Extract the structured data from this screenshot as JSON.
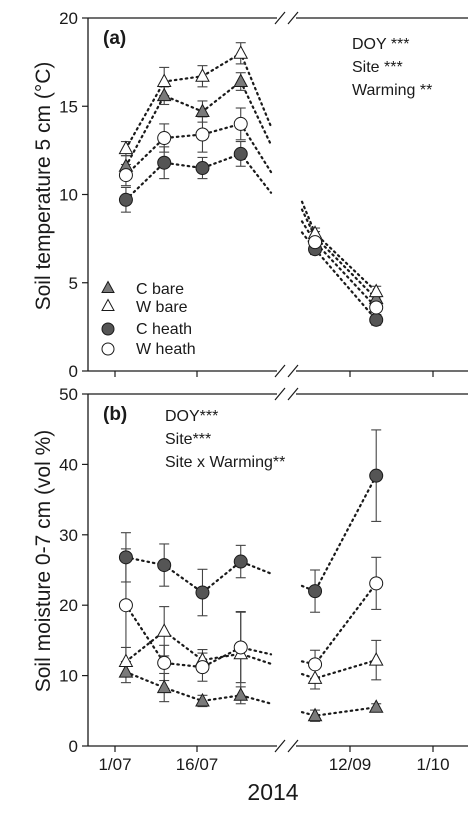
{
  "figure": {
    "xlabel": "2014",
    "x_ticks": [
      "1/07",
      "16/07",
      "12/09",
      "1/10"
    ],
    "legend": [
      {
        "label": "C bare",
        "marker": "triangle",
        "fill": "#7a7a7a"
      },
      {
        "label": "W bare",
        "marker": "triangle",
        "fill": "#ffffff"
      },
      {
        "label": "C heath",
        "marker": "circle",
        "fill": "#555555"
      },
      {
        "label": "W heath",
        "marker": "circle",
        "fill": "#ffffff"
      }
    ]
  },
  "chart_data": [
    {
      "type": "line",
      "panel_label": "(a)",
      "ylabel": "Soil temperature 5 cm (°C)",
      "ylim": [
        0,
        20
      ],
      "y_ticks": [
        "0",
        "5",
        "10",
        "15",
        "20"
      ],
      "x_ticks": [
        "1/07",
        "16/07",
        "12/09",
        "1/10"
      ],
      "x_break": "between late July and early September",
      "annotations": [
        "DOY ***",
        "Site ***",
        "Warming **"
      ],
      "series": [
        {
          "name": "C bare",
          "marker": "triangle",
          "fill": "#7a7a7a",
          "points": [
            {
              "x": "2014-07-03",
              "y": 11.6,
              "err": 0.6
            },
            {
              "x": "2014-07-10",
              "y": 15.6,
              "err": 0.5
            },
            {
              "x": "2014-07-17",
              "y": 14.7,
              "err": 0.6
            },
            {
              "x": "2014-07-24",
              "y": 16.4,
              "err": 0.5
            },
            {
              "x": "2014-09-04",
              "y": 7.6,
              "err": 0.3
            },
            {
              "x": "2014-09-18",
              "y": 4.1,
              "err": 0.3
            }
          ]
        },
        {
          "name": "W bare",
          "marker": "triangle",
          "fill": "#ffffff",
          "points": [
            {
              "x": "2014-07-03",
              "y": 12.6,
              "err": 0.4
            },
            {
              "x": "2014-07-10",
              "y": 16.4,
              "err": 0.8
            },
            {
              "x": "2014-07-17",
              "y": 16.7,
              "err": 0.6
            },
            {
              "x": "2014-07-24",
              "y": 18.0,
              "err": 0.6
            },
            {
              "x": "2014-09-04",
              "y": 7.8,
              "err": 0.3
            },
            {
              "x": "2014-09-18",
              "y": 4.5,
              "err": 0.3
            }
          ]
        },
        {
          "name": "C heath",
          "marker": "circle",
          "fill": "#555555",
          "points": [
            {
              "x": "2014-07-03",
              "y": 9.7,
              "err": 0.7
            },
            {
              "x": "2014-07-10",
              "y": 11.8,
              "err": 0.9
            },
            {
              "x": "2014-07-17",
              "y": 11.5,
              "err": 0.6
            },
            {
              "x": "2014-07-24",
              "y": 12.3,
              "err": 0.7
            },
            {
              "x": "2014-09-04",
              "y": 6.9,
              "err": 0.3
            },
            {
              "x": "2014-09-18",
              "y": 2.9,
              "err": 0.3
            }
          ]
        },
        {
          "name": "W heath",
          "marker": "circle",
          "fill": "#ffffff",
          "points": [
            {
              "x": "2014-07-03",
              "y": 11.1,
              "err": 0.6
            },
            {
              "x": "2014-07-10",
              "y": 13.2,
              "err": 0.8
            },
            {
              "x": "2014-07-17",
              "y": 13.4,
              "err": 1.0
            },
            {
              "x": "2014-07-24",
              "y": 14.0,
              "err": 0.9
            },
            {
              "x": "2014-09-04",
              "y": 7.3,
              "err": 0.3
            },
            {
              "x": "2014-09-18",
              "y": 3.6,
              "err": 0.4
            }
          ]
        }
      ]
    },
    {
      "type": "line",
      "panel_label": "(b)",
      "ylabel": "Soil moisture 0-7 cm (vol %)",
      "ylim": [
        0,
        50
      ],
      "y_ticks": [
        "0",
        "10",
        "20",
        "30",
        "40",
        "50"
      ],
      "x_ticks": [
        "1/07",
        "16/07",
        "12/09",
        "1/10"
      ],
      "x_break": "between late July and early September",
      "annotations": [
        "DOY***",
        "Site***",
        "Site x Warming**"
      ],
      "series": [
        {
          "name": "C bare",
          "marker": "triangle",
          "fill": "#7a7a7a",
          "points": [
            {
              "x": "2014-07-03",
              "y": 10.5,
              "err": 1.5
            },
            {
              "x": "2014-07-10",
              "y": 8.3,
              "err": 2.0
            },
            {
              "x": "2014-07-17",
              "y": 6.4,
              "err": 0.8
            },
            {
              "x": "2014-07-24",
              "y": 7.2,
              "err": 1.2
            },
            {
              "x": "2014-09-04",
              "y": 4.3,
              "err": 0.8
            },
            {
              "x": "2014-09-18",
              "y": 5.5,
              "err": 0.5
            }
          ]
        },
        {
          "name": "W bare",
          "marker": "triangle",
          "fill": "#ffffff",
          "points": [
            {
              "x": "2014-07-03",
              "y": 12.0,
              "err": 2.0
            },
            {
              "x": "2014-07-10",
              "y": 16.3,
              "err": 3.5
            },
            {
              "x": "2014-07-17",
              "y": 12.2,
              "err": 1.5
            },
            {
              "x": "2014-07-24",
              "y": 13.1,
              "err": 6.0
            },
            {
              "x": "2014-09-04",
              "y": 9.6,
              "err": 1.5
            },
            {
              "x": "2014-09-18",
              "y": 12.2,
              "err": 2.8
            }
          ]
        },
        {
          "name": "C heath",
          "marker": "circle",
          "fill": "#555555",
          "points": [
            {
              "x": "2014-07-03",
              "y": 26.8,
              "err": 3.5
            },
            {
              "x": "2014-07-10",
              "y": 25.7,
              "err": 3.0
            },
            {
              "x": "2014-07-17",
              "y": 21.8,
              "err": 3.3
            },
            {
              "x": "2014-07-24",
              "y": 26.2,
              "err": 2.3
            },
            {
              "x": "2014-09-04",
              "y": 22.0,
              "err": 3.0
            },
            {
              "x": "2014-09-18",
              "y": 38.4,
              "err": 6.5
            }
          ]
        },
        {
          "name": "W heath",
          "marker": "circle",
          "fill": "#ffffff",
          "points": [
            {
              "x": "2014-07-03",
              "y": 20.0,
              "err": 8.0
            },
            {
              "x": "2014-07-10",
              "y": 11.8,
              "err": 2.5
            },
            {
              "x": "2014-07-17",
              "y": 11.2,
              "err": 2.0
            },
            {
              "x": "2014-07-24",
              "y": 14.0,
              "err": 5.0
            },
            {
              "x": "2014-09-04",
              "y": 11.6,
              "err": 2.0
            },
            {
              "x": "2014-09-18",
              "y": 23.1,
              "err": 3.7
            }
          ]
        }
      ]
    }
  ]
}
